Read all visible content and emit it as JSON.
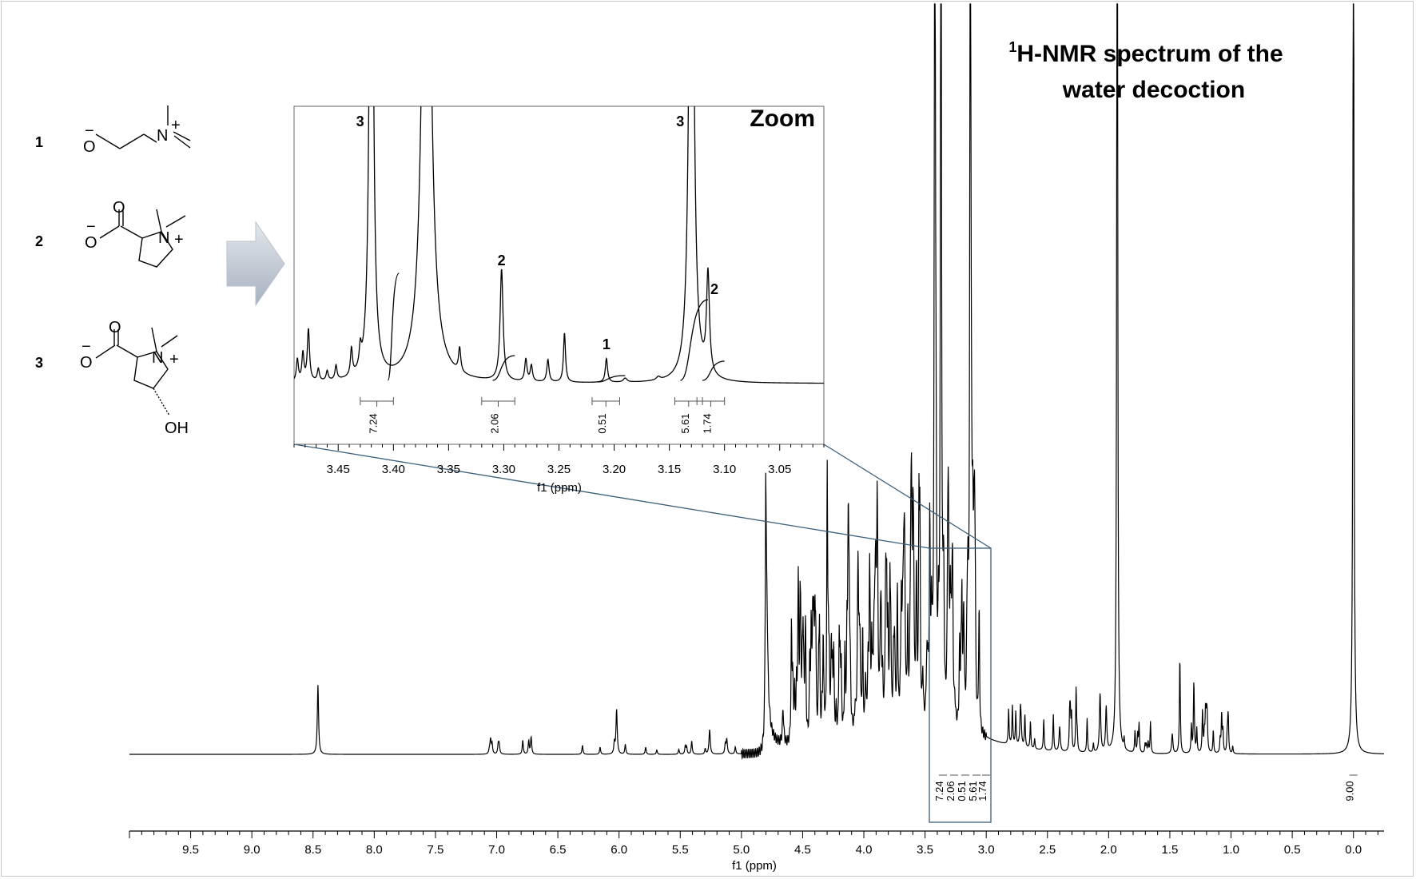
{
  "title_line1": "H-NMR spectrum of the",
  "title_sup": "1",
  "title_line2": "water decoction",
  "zoom_label": "Zoom",
  "compounds": [
    {
      "number": "1"
    },
    {
      "number": "2"
    },
    {
      "number": "3",
      "oh": "OH"
    }
  ],
  "chem_text": {
    "O": "O",
    "N": "N",
    "plus": "+",
    "minus": "−"
  },
  "chart_data": [
    {
      "type": "line",
      "name": "main-spectrum",
      "xlabel": "f1 (ppm)",
      "ylabel": "",
      "xlim": [
        10.0,
        -0.25
      ],
      "x_reversed": true,
      "x_ticks": [
        "9.5",
        "9.0",
        "8.5",
        "8.0",
        "7.5",
        "7.0",
        "6.5",
        "6.0",
        "5.5",
        "5.0",
        "4.5",
        "4.0",
        "3.5",
        "3.0",
        "2.5",
        "2.0",
        "1.5",
        "1.0",
        "0.5",
        "0.0"
      ],
      "x_tick_values": [
        9.5,
        9.0,
        8.5,
        8.0,
        7.5,
        7.0,
        6.5,
        6.0,
        5.5,
        5.0,
        4.5,
        4.0,
        3.5,
        3.0,
        2.5,
        2.0,
        1.5,
        1.0,
        0.5,
        0.0
      ],
      "integrals": [
        "7.24",
        "2.06",
        "0.51",
        "5.61",
        "1.74",
        "9.00"
      ],
      "peaks_ppm": [
        8.46,
        7.05,
        6.98,
        6.02,
        5.26,
        5.12,
        4.8,
        4.66,
        4.41,
        4.12,
        4.05,
        3.9,
        3.82,
        3.75,
        3.6,
        3.42,
        3.37,
        3.31,
        3.13,
        3.11,
        2.72,
        2.4,
        2.07,
        2.02,
        1.93,
        1.48,
        1.2,
        0.0
      ],
      "peak_heights_rel": [
        0.14,
        0.03,
        0.02,
        0.09,
        0.05,
        0.03,
        0.65,
        0.07,
        0.12,
        0.17,
        0.18,
        0.16,
        0.18,
        0.17,
        0.16,
        1.0,
        1.0,
        0.42,
        1.0,
        0.35,
        0.08,
        0.05,
        0.12,
        0.09,
        1.0,
        0.04,
        0.07,
        1.0
      ]
    },
    {
      "type": "line",
      "name": "zoom-inset",
      "xlabel": "f1 (ppm)",
      "xlim": [
        3.49,
        3.01
      ],
      "x_reversed": true,
      "x_ticks": [
        "3.45",
        "3.40",
        "3.35",
        "3.30",
        "3.25",
        "3.20",
        "3.15",
        "3.10",
        "3.05"
      ],
      "x_tick_values": [
        3.45,
        3.4,
        3.35,
        3.3,
        3.25,
        3.2,
        3.15,
        3.1,
        3.05
      ],
      "peak_labels": [
        {
          "text": "3",
          "ppm": 3.42
        },
        {
          "text": "2",
          "ppm": 3.302
        },
        {
          "text": "1",
          "ppm": 3.207
        },
        {
          "text": "3",
          "ppm": 3.13
        },
        {
          "text": "2",
          "ppm": 3.115
        }
      ],
      "integrals": [
        {
          "value": "7.24",
          "from": 3.43,
          "to": 3.4
        },
        {
          "value": "2.06",
          "from": 3.32,
          "to": 3.29
        },
        {
          "value": "0.51",
          "from": 3.22,
          "to": 3.195
        },
        {
          "value": "5.61",
          "from": 3.145,
          "to": 3.12
        },
        {
          "value": "1.74",
          "from": 3.125,
          "to": 3.1
        }
      ]
    }
  ]
}
